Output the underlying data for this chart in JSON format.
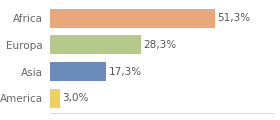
{
  "categories": [
    "Africa",
    "Europa",
    "Asia",
    "America"
  ],
  "values": [
    51.3,
    28.3,
    17.3,
    3.0
  ],
  "labels": [
    "51,3%",
    "28,3%",
    "17,3%",
    "3,0%"
  ],
  "bar_colors": [
    "#e8a87c",
    "#b5c98a",
    "#6b8cba",
    "#f0d060"
  ],
  "background_color": "#ffffff",
  "xlim": [
    0,
    70
  ],
  "bar_height": 0.72,
  "label_fontsize": 7.5,
  "tick_fontsize": 7.5,
  "label_color": "#555555",
  "tick_color": "#666666"
}
